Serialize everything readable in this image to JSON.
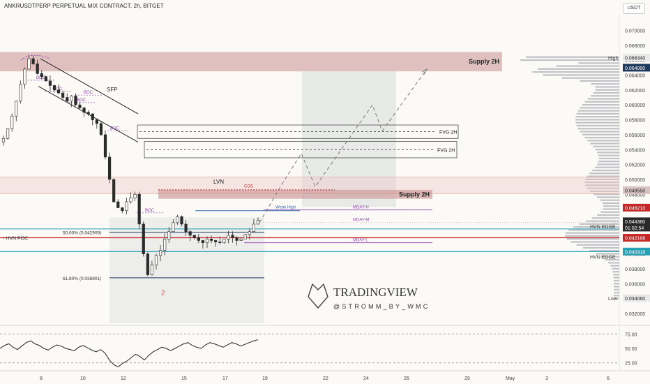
{
  "header": {
    "title": "ANKRUSDTPERP PERPETUAL MIX CONTRACT, 2h, BITGET",
    "currency": "USDT"
  },
  "colors": {
    "up": "#2b2b2b",
    "down": "#2b2b2b",
    "supply_zone": "#c9908f",
    "red_line": "#c62828",
    "teal_line": "#26a0b4",
    "navy_line": "#1f3a5f",
    "purple": "#8e44ad",
    "projection_box": "#dfe3e3",
    "volume_profile": "#8e939e"
  },
  "chart_data": [
    {
      "type": "candlestick",
      "ylim": [
        0.0306,
        0.0722
      ],
      "y_ticks": [
        "0.070000",
        "0.068000",
        "0.066000",
        "0.064000",
        "0.062000",
        "0.060000",
        "0.058000",
        "0.056000",
        "0.054000",
        "0.052000",
        "0.050000",
        "0.048000",
        "0.046000",
        "0.044000",
        "0.042000",
        "0.040000",
        "0.038000",
        "0.036000",
        "0.034000",
        "0.032000"
      ],
      "x_ticks": [
        "8",
        "10",
        "12",
        "15",
        "17",
        "19",
        "22",
        "24",
        "26",
        "29",
        "May",
        "3",
        "6"
      ],
      "price_series": [
        0.0555,
        0.0568,
        0.0585,
        0.0605,
        0.0628,
        0.0648,
        0.0662,
        0.0655,
        0.0642,
        0.0638,
        0.0632,
        0.0626,
        0.062,
        0.0616,
        0.061,
        0.0605,
        0.0612,
        0.06,
        0.0596,
        0.059,
        0.0588,
        0.058,
        0.0575,
        0.056,
        0.053,
        0.05,
        0.047,
        0.0462,
        0.0458,
        0.047,
        0.0475,
        0.048,
        0.044,
        0.04,
        0.0372,
        0.0385,
        0.0398,
        0.0405,
        0.042,
        0.043,
        0.0442,
        0.045,
        0.044,
        0.043,
        0.0425,
        0.0422,
        0.0418,
        0.0415,
        0.042,
        0.0418,
        0.0416,
        0.0415,
        0.042,
        0.0425,
        0.0422,
        0.0418,
        0.042,
        0.0426,
        0.043,
        0.044,
        0.0445
      ],
      "price_labels": [
        {
          "label": "High",
          "value": "0.066340",
          "color": "#e9e9e9",
          "text": "#222"
        },
        {
          "label": "",
          "value": "0.064990",
          "color": "#1f3a5f",
          "text": "#ffffff"
        },
        {
          "label": "",
          "value": "0.048550",
          "color": "#d9c3c1",
          "text": "#222"
        },
        {
          "label": "",
          "value": "0.046210",
          "color": "#c62828",
          "text": "#ffffff"
        },
        {
          "label": "",
          "value": "0.044380",
          "color": "#2a2a2a",
          "text": "#ffffff"
        },
        {
          "label": "",
          "value": "01:02:54",
          "color": "#2a2a2a",
          "text": "#ffffff"
        },
        {
          "label": "",
          "value": "0.042168",
          "color": "#c62828",
          "text": "#ffffff"
        },
        {
          "label": "",
          "value": "0.040318",
          "color": "#26a0b4",
          "text": "#ffffff"
        },
        {
          "label": "Low",
          "value": "0.034060",
          "color": "#e9e9e9",
          "text": "#222"
        }
      ],
      "annotations": {
        "supply_top": "Supply 2H",
        "supply_mid": "Supply 2H",
        "fvg1": "FVG 2H",
        "fvg2": "FVG 2H",
        "lvn": "LVN",
        "cos": "COS",
        "sfp": "SFP",
        "weak_high": "Weak High",
        "mday_h": "MDAY-H",
        "mday_m": "MDAY-M",
        "mday_l": "MDAY-L",
        "fib50": "50.00% (0.042909)",
        "fib618": "61.80% (0.036801)",
        "hvn_poc": "HVN POC",
        "hvn_edge_top": "HVN EDGE",
        "hvn_edge_bottom": "HVN EDGE",
        "wave_label": "2",
        "boc_labels": [
          "BOC",
          "BOC",
          "BOC",
          "BOC",
          "BOC",
          "BOC"
        ]
      },
      "watermark": {
        "title": "TRADINGVIEW",
        "handle": "@STROMM_BY_WMC"
      }
    },
    {
      "type": "line",
      "name": "",
      "ylim": [
        15,
        85
      ],
      "y_ticks": [
        "75.00",
        "50.00",
        "25.00"
      ],
      "values": [
        50,
        55,
        58,
        52,
        48,
        54,
        60,
        63,
        58,
        55,
        50,
        47,
        52,
        56,
        54,
        50,
        48,
        46,
        52,
        55,
        51,
        47,
        44,
        48,
        42,
        30,
        22,
        18,
        24,
        28,
        34,
        40,
        36,
        30,
        38,
        44,
        48,
        52,
        50,
        46,
        50,
        54,
        58,
        60,
        55,
        52,
        50,
        56,
        60,
        58,
        55,
        52,
        56,
        60,
        58,
        54,
        57,
        60,
        63,
        65
      ]
    }
  ]
}
